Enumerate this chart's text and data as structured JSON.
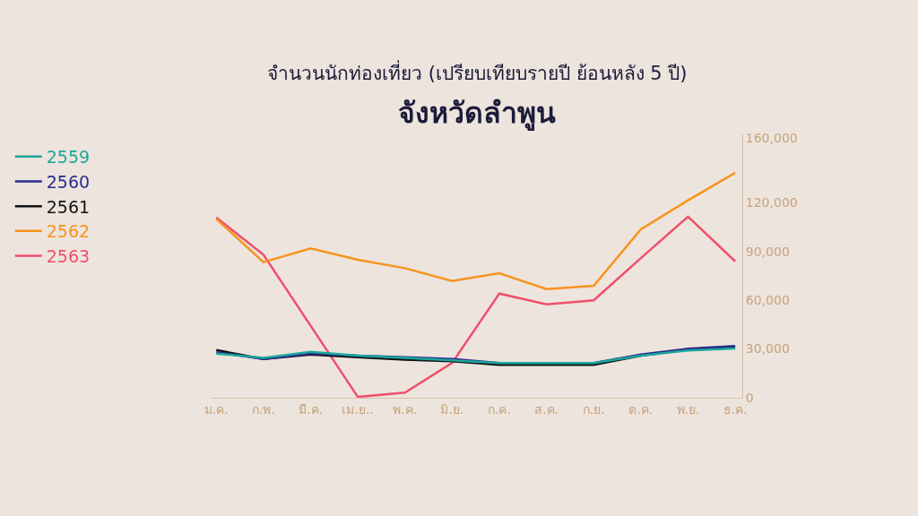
{
  "chart_data": {
    "type": "line",
    "subtitle": "จำนวนนักท่องเที่ยว (เปรียบเทียบรายปี ย้อนหลัง 5 ปี)",
    "title": "จังหวัดลำพูน",
    "categories": [
      "ม.ค.",
      "ก.พ.",
      "มี.ค.",
      "เม.ย..",
      "พ.ค.",
      "มิ.ย.",
      "ก.ค.",
      "ส.ค.",
      "ก.ย.",
      "ต.ค.",
      "พ.ย.",
      "ธ.ค."
    ],
    "series": [
      {
        "name": "2559",
        "color": "#1aa89a",
        "values": [
          27200,
          24500,
          28200,
          25900,
          24500,
          23000,
          21400,
          21400,
          21400,
          25900,
          29100,
          30300
        ]
      },
      {
        "name": "2560",
        "color": "#2a2a90",
        "values": [
          28000,
          23900,
          27200,
          25900,
          24900,
          23900,
          21400,
          21400,
          21400,
          26600,
          30100,
          31800
        ]
      },
      {
        "name": "2561",
        "color": "#111111",
        "values": [
          29300,
          23900,
          26600,
          24900,
          23400,
          22400,
          20300,
          20300,
          20300,
          25900,
          29700,
          31400
        ]
      },
      {
        "name": "2562",
        "color": "#f7931e",
        "values": [
          110000,
          83400,
          91800,
          84900,
          79700,
          71800,
          76600,
          66800,
          68900,
          103600,
          121400,
          138400
        ]
      },
      {
        "name": "2563",
        "color": "#ef4f6a",
        "values": [
          110900,
          88000,
          44300,
          500,
          3200,
          21400,
          64100,
          57400,
          59900,
          85900,
          111400,
          83900
        ]
      }
    ],
    "ylim": [
      0,
      162000
    ],
    "yticks": [
      {
        "value": 0,
        "label": "0"
      },
      {
        "value": 30000,
        "label": "30,000"
      },
      {
        "value": 60000,
        "label": "60,000"
      },
      {
        "value": 90000,
        "label": "90,000"
      },
      {
        "value": 120000,
        "label": "120,000"
      },
      {
        "value": 160000,
        "label": "160,000"
      }
    ],
    "grid": false,
    "legend": "left",
    "marker": "none",
    "line_style": "solid"
  }
}
